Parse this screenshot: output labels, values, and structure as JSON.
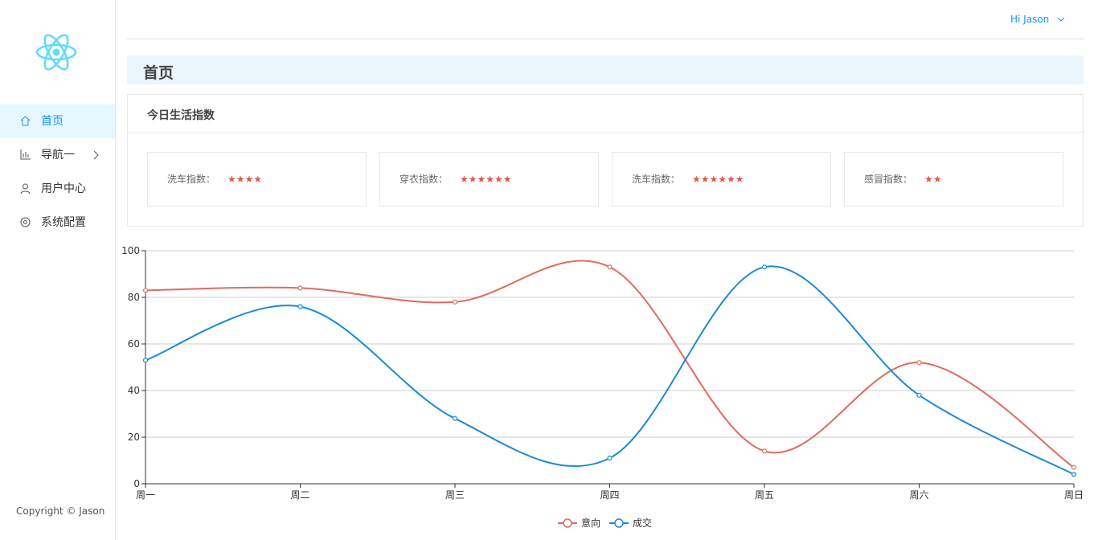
{
  "user": {
    "greeting": "Hi Jason"
  },
  "sidebar": {
    "menu": [
      {
        "label": "首页"
      },
      {
        "label": "导航一"
      },
      {
        "label": "用户中心"
      },
      {
        "label": "系统配置"
      }
    ],
    "copyright": "Copyright © Jason"
  },
  "page": {
    "title": "首页"
  },
  "card": {
    "title": "今日生活指数",
    "items": [
      {
        "label": "洗车指数：",
        "stars": "★★★★"
      },
      {
        "label": "穿衣指数：",
        "stars": "★★★★★★"
      },
      {
        "label": "洗车指数：",
        "stars": "★★★★★★"
      },
      {
        "label": "感冒指数：",
        "stars": "★★"
      }
    ]
  },
  "chart_data": {
    "type": "line",
    "categories": [
      "周一",
      "周二",
      "周三",
      "周四",
      "周五",
      "周六",
      "周日"
    ],
    "series": [
      {
        "name": "意向",
        "color": "#e06c5d",
        "values": [
          83,
          84,
          78,
          93,
          14,
          52,
          7
        ]
      },
      {
        "name": "成交",
        "color": "#1a8ad4",
        "values": [
          53,
          76,
          28,
          11,
          93,
          38,
          4
        ]
      }
    ],
    "ylim": [
      0,
      100
    ],
    "yticks": [
      0,
      20,
      40,
      60,
      80,
      100
    ],
    "grid": true,
    "legend": "bottom",
    "smooth": true
  }
}
